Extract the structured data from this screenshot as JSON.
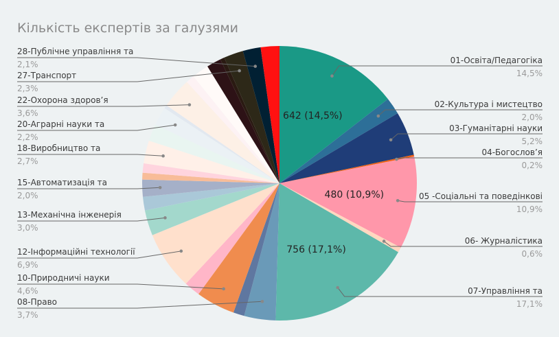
{
  "chart_data": {
    "type": "pie",
    "title": "Кількість експертів за галузями",
    "start": "top",
    "direction": "clockwise",
    "slices": [
      {
        "label": "01-Освіта/Педагогіка",
        "pct": 14.5,
        "pct_text": "14,5%",
        "value": 642,
        "inner_text": "642 (14,5%)",
        "color": "#1a9986",
        "side": "right"
      },
      {
        "label": "02-Культура і мистецтво",
        "pct": 2.0,
        "pct_text": "2,0%",
        "color": "#2d6f98",
        "side": "right"
      },
      {
        "label": "03-Гуманітарні науки",
        "pct": 5.2,
        "pct_text": "5,2%",
        "color": "#1f3d78",
        "side": "right"
      },
      {
        "label": "04-Богослов’я",
        "pct": 0.2,
        "pct_text": "0,2%",
        "color": "#f06010",
        "side": "right"
      },
      {
        "label": "05 -Соціальні та поведінкові",
        "pct": 10.9,
        "pct_text": "10,9%",
        "value": 480,
        "inner_text": "480 (10,9%)",
        "color": "#ff97aa",
        "side": "right"
      },
      {
        "label": "06- Журналістика",
        "pct": 0.6,
        "pct_text": "0,6%",
        "color": "#ffd8c0",
        "side": "right"
      },
      {
        "label": "07-Управління та",
        "pct": 17.1,
        "pct_text": "17,1%",
        "value": 756,
        "inner_text": "756 (17,1%)",
        "color": "#5db8aa",
        "side": "right"
      },
      {
        "label": "08-Право",
        "pct": 3.7,
        "pct_text": "3,7%",
        "color": "#6a9ab8",
        "side": "left"
      },
      {
        "label": "",
        "pct": 1.3,
        "color": "#5f77a0"
      },
      {
        "label": "10-Природничі науки",
        "pct": 4.6,
        "pct_text": "4,6%",
        "color": "#f08c4e",
        "side": "left"
      },
      {
        "label": "",
        "pct": 1.9,
        "color": "#ffb6c8"
      },
      {
        "label": "12-Інформаційні технології",
        "pct": 6.9,
        "pct_text": "6,9%",
        "color": "#ffe0cc",
        "side": "left"
      },
      {
        "label": "13-Механічна інженерія",
        "pct": 3.0,
        "pct_text": "3,0%",
        "color": "#a3d8cc",
        "side": "left"
      },
      {
        "label": "",
        "pct": 1.6,
        "color": "#aac8d8"
      },
      {
        "label": "15-Автоматизація та",
        "pct": 2.0,
        "pct_text": "2,0%",
        "color": "#a5b0c8",
        "side": "left"
      },
      {
        "label": "",
        "pct": 0.8,
        "color": "#f8bc98"
      },
      {
        "label": "",
        "pct": 1.1,
        "color": "#ffd4de"
      },
      {
        "label": "18-Виробництво та",
        "pct": 2.7,
        "pct_text": "2,7%",
        "color": "#fff0e8",
        "side": "left"
      },
      {
        "label": "",
        "pct": 2.0,
        "color": "#e9f5f1"
      },
      {
        "label": "20-Аграрні науки та",
        "pct": 2.2,
        "pct_text": "2,2%",
        "color": "#ebf1f5",
        "side": "left"
      },
      {
        "label": "",
        "pct": 0.4,
        "color": "#e2e8f0"
      },
      {
        "label": "22-Охорона здоров’я",
        "pct": 3.6,
        "pct_text": "3,6%",
        "color": "#fdf0e6",
        "side": "left"
      },
      {
        "label": "",
        "pct": 1.0,
        "color": "#fdf2f4"
      },
      {
        "label": "",
        "pct": 2.0,
        "color": "#fffaf8"
      },
      {
        "label": "",
        "pct": 1.7,
        "color": "#2d1216"
      },
      {
        "label": "",
        "pct": 0.5,
        "color": "#2a1a12"
      },
      {
        "label": "27-Транспорт",
        "pct": 2.3,
        "pct_text": "2,3%",
        "color": "#2d2818",
        "side": "left"
      },
      {
        "label": "28-Публічне управління та",
        "pct": 2.1,
        "pct_text": "2,1%",
        "color": "#012033",
        "side": "left"
      },
      {
        "label": "",
        "pct": 2.2,
        "color": "#ff1111"
      }
    ]
  }
}
